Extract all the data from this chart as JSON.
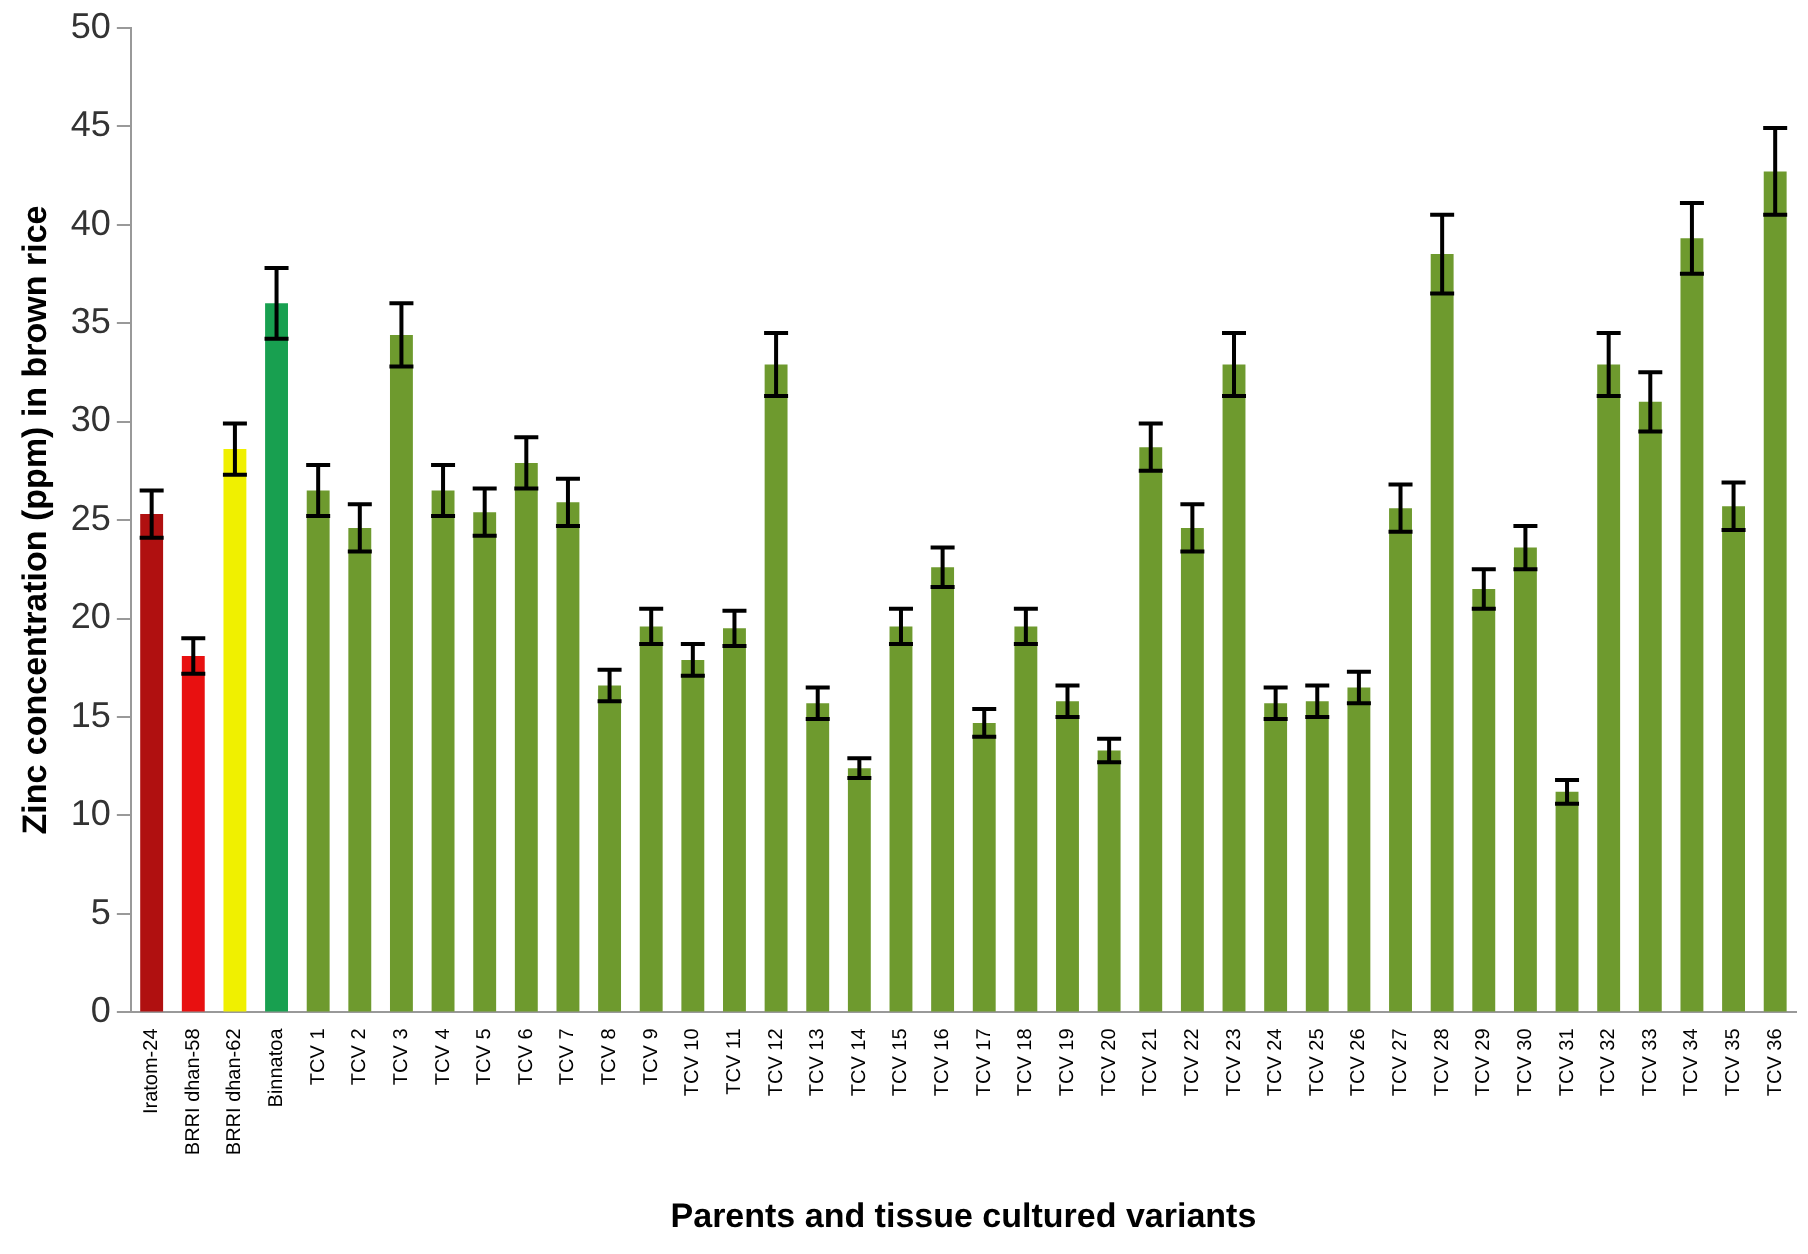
{
  "chart_data": {
    "type": "bar",
    "xlabel": "Parents and tissue cultured variants",
    "ylabel": "Zinc concentration (ppm) in brown rice",
    "categories": [
      "Iratom-24",
      "BRRI dhan-58",
      "BRRI dhan-62",
      "Binnatoa",
      "TCV 1",
      "TCV 2",
      "TCV 3",
      "TCV 4",
      "TCV 5",
      "TCV 6",
      "TCV 7",
      "TCV 8",
      "TCV 9",
      "TCV 10",
      "TCV 11",
      "TCV 12",
      "TCV 13",
      "TCV 14",
      "TCV 15",
      "TCV 16",
      "TCV 17",
      "TCV 18",
      "TCV 19",
      "TCV 20",
      "TCV 21",
      "TCV 22",
      "TCV 23",
      "TCV 24",
      "TCV 25",
      "TCV 26",
      "TCV 27",
      "TCV 28",
      "TCV 29",
      "TCV 30",
      "TCV 31",
      "TCV 32",
      "TCV 33",
      "TCV 34",
      "TCV 35",
      "TCV 36"
    ],
    "values": [
      25.3,
      18.1,
      28.6,
      36,
      26.5,
      24.6,
      34.4,
      26.5,
      25.4,
      27.9,
      25.9,
      16.6,
      19.6,
      17.9,
      19.5,
      32.9,
      15.7,
      12.4,
      19.6,
      22.6,
      14.7,
      19.6,
      15.8,
      13.3,
      28.7,
      24.6,
      32.9,
      15.7,
      15.8,
      16.5,
      25.6,
      38.5,
      21.5,
      23.6,
      11.2,
      32.9,
      31,
      39.3,
      25.7,
      42.7
    ],
    "errors": [
      1.2,
      0.9,
      1.3,
      1.8,
      1.3,
      1.2,
      1.6,
      1.3,
      1.2,
      1.3,
      1.2,
      0.8,
      0.9,
      0.8,
      0.9,
      1.6,
      0.8,
      0.5,
      0.9,
      1.0,
      0.7,
      0.9,
      0.8,
      0.6,
      1.2,
      1.2,
      1.6,
      0.8,
      0.8,
      0.8,
      1.2,
      2.0,
      1.0,
      1.1,
      0.6,
      1.6,
      1.5,
      1.8,
      1.2,
      2.2
    ],
    "colors": [
      "#b01010",
      "#e81010",
      "#f0f000",
      "#18a050",
      "#6e9a2e",
      "#6e9a2e",
      "#6e9a2e",
      "#6e9a2e",
      "#6e9a2e",
      "#6e9a2e",
      "#6e9a2e",
      "#6e9a2e",
      "#6e9a2e",
      "#6e9a2e",
      "#6e9a2e",
      "#6e9a2e",
      "#6e9a2e",
      "#6e9a2e",
      "#6e9a2e",
      "#6e9a2e",
      "#6e9a2e",
      "#6e9a2e",
      "#6e9a2e",
      "#6e9a2e",
      "#6e9a2e",
      "#6e9a2e",
      "#6e9a2e",
      "#6e9a2e",
      "#6e9a2e",
      "#6e9a2e",
      "#6e9a2e",
      "#6e9a2e",
      "#6e9a2e",
      "#6e9a2e",
      "#6e9a2e",
      "#6e9a2e",
      "#6e9a2e",
      "#6e9a2e",
      "#6e9a2e",
      "#6e9a2e"
    ],
    "ylim": [
      0,
      50
    ],
    "yticks": [
      0,
      5,
      10,
      15,
      20,
      25,
      30,
      35,
      40,
      45,
      50
    ],
    "grid": false,
    "legend": false
  }
}
